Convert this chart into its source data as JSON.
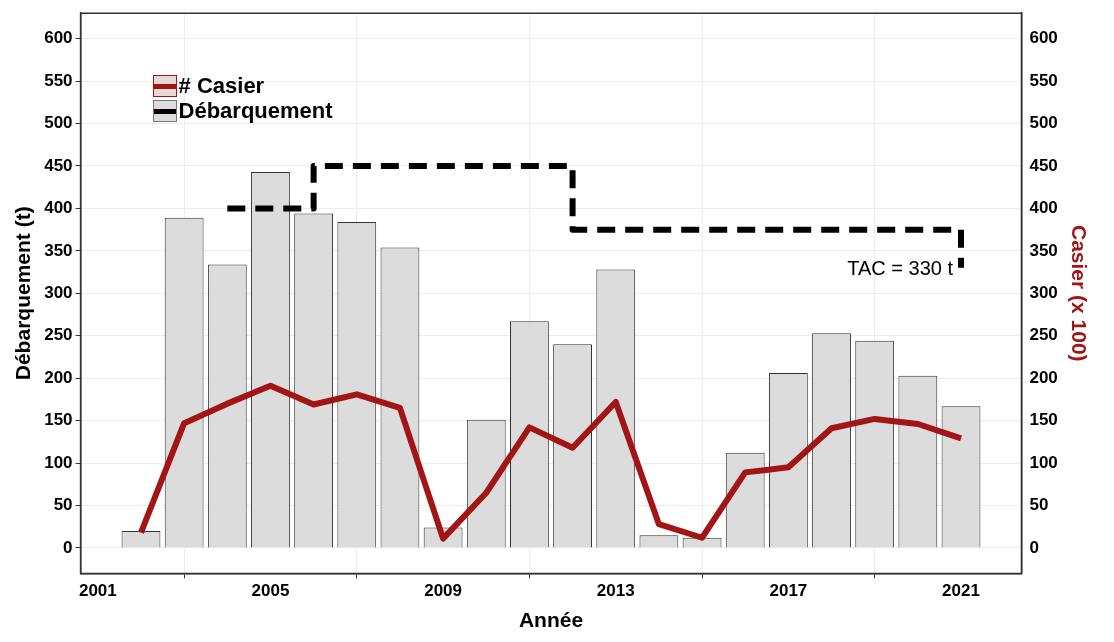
{
  "chart_data": {
    "type": "bar",
    "xlabel": "Année",
    "ylabel": "Débarquement (t)",
    "y2label": "Casier (x 100)",
    "x": [
      2002,
      2003,
      2004,
      2005,
      2006,
      2007,
      2008,
      2009,
      2010,
      2011,
      2012,
      2013,
      2014,
      2015,
      2016,
      2017,
      2018,
      2019,
      2020,
      2021
    ],
    "series": [
      {
        "name": "# Casier",
        "type": "line",
        "axis": "y2",
        "color": "#a31515",
        "values": [
          18,
          147,
          170,
          191,
          169,
          181,
          165,
          11,
          65,
          142,
          118,
          172,
          28,
          12,
          89,
          95,
          141,
          152,
          146,
          129
        ]
      },
      {
        "name": "Débarquement",
        "color": "#dcdcdc",
        "values": [
          20,
          389,
          334,
          443,
          394,
          384,
          354,
          24,
          151,
          267,
          240,
          328,
          15,
          12,
          112,
          206,
          253,
          244,
          203,
          167
        ]
      },
      {
        "type": "line",
        "color": "#000000",
        "line_style": "dashed",
        "x": [
          2004,
          2006,
          2006,
          2012,
          2012,
          2021,
          2021
        ],
        "values": [
          400,
          400,
          450,
          450,
          375,
          375,
          330
        ]
      }
    ],
    "xlim": [
      2000.6,
      2022.4
    ],
    "xticks": [
      2001,
      2005,
      2009,
      2013,
      2017,
      2021
    ],
    "ylim": [
      -30,
      630
    ],
    "yticks": [
      0,
      50,
      100,
      150,
      200,
      250,
      300,
      350,
      400,
      450,
      500,
      550,
      600
    ],
    "y2lim": [
      -30,
      630
    ],
    "y2ticks": [
      0,
      50,
      100,
      150,
      200,
      250,
      300,
      350,
      400,
      450,
      500,
      550,
      600
    ],
    "annotations": [
      {
        "text": "TAC = 330 t",
        "x": 2021,
        "y": 330
      }
    ],
    "grid": true,
    "legend": "top left"
  }
}
